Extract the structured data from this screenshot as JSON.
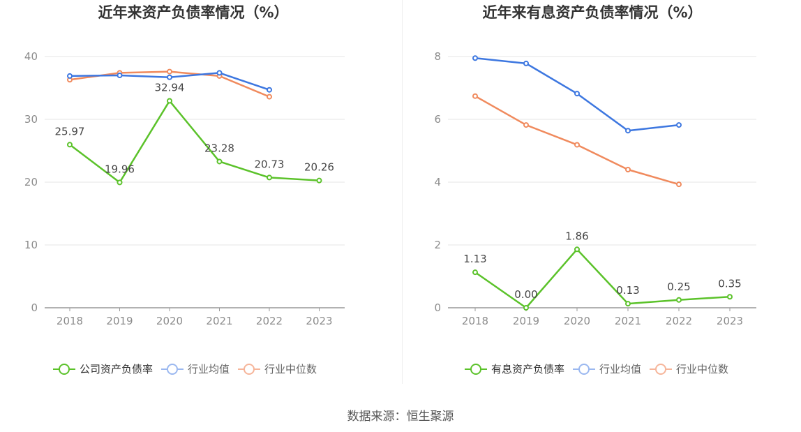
{
  "chart_data": [
    {
      "type": "line",
      "title": "近年来资产负债率情况（%）",
      "categories": [
        "2018",
        "2019",
        "2020",
        "2021",
        "2022",
        "2023"
      ],
      "ylim": [
        0,
        40
      ],
      "yticks": [
        0,
        10,
        20,
        30,
        40
      ],
      "grid": true,
      "legend_position": "bottom",
      "series": [
        {
          "name": "公司资产负债率",
          "color": "#5bc22a",
          "values": [
            25.97,
            19.96,
            32.94,
            23.28,
            20.73,
            20.26
          ],
          "labels": [
            "25.97",
            "19.96",
            "32.94",
            "23.28",
            "20.73",
            "20.26"
          ]
        },
        {
          "name": "行业均值",
          "color": "#3d77e0",
          "values": [
            36.9,
            37.0,
            36.7,
            37.4,
            34.7,
            null
          ]
        },
        {
          "name": "行业中位数",
          "color": "#f08a5d",
          "values": [
            36.3,
            37.4,
            37.6,
            36.9,
            33.6,
            null
          ]
        }
      ]
    },
    {
      "type": "line",
      "title": "近年来有息资产负债率情况（%）",
      "categories": [
        "2018",
        "2019",
        "2020",
        "2021",
        "2022",
        "2023"
      ],
      "ylim": [
        0,
        8
      ],
      "yticks": [
        0,
        2,
        4,
        6,
        8
      ],
      "grid": true,
      "legend_position": "bottom",
      "series": [
        {
          "name": "有息资产负债率",
          "color": "#5bc22a",
          "values": [
            1.13,
            0.0,
            1.86,
            0.13,
            0.25,
            0.35
          ],
          "labels": [
            "1.13",
            "0.00",
            "1.86",
            "0.13",
            "0.25",
            "0.35"
          ]
        },
        {
          "name": "行业均值",
          "color": "#3d77e0",
          "values": [
            7.95,
            7.78,
            6.82,
            5.64,
            5.82,
            null
          ]
        },
        {
          "name": "行业中位数",
          "color": "#f08a5d",
          "values": [
            6.74,
            5.82,
            5.19,
            4.4,
            3.93,
            null
          ]
        }
      ]
    }
  ],
  "footer": {
    "source": "数据来源：恒生聚源"
  }
}
